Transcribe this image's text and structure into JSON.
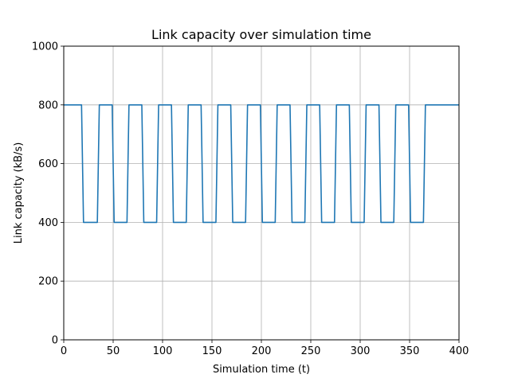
{
  "chart_data": {
    "type": "line",
    "title": "Link capacity over simulation time",
    "xlabel": "Simulation time (t)",
    "ylabel": "Link capacity (kB/s)",
    "xlim": [
      0,
      400
    ],
    "ylim": [
      0,
      1000
    ],
    "xticks": [
      0,
      50,
      100,
      150,
      200,
      250,
      300,
      350,
      400
    ],
    "yticks": [
      0,
      200,
      400,
      600,
      800,
      1000
    ],
    "grid": true,
    "line_color": "#1f77b4",
    "series": [
      {
        "x": [
          0,
          18,
          20,
          34,
          36,
          49,
          51,
          64,
          66,
          79,
          81,
          94,
          96,
          109,
          111,
          124,
          126,
          139,
          141,
          154,
          156,
          169,
          171,
          184,
          186,
          199,
          201,
          214,
          216,
          229,
          231,
          244,
          246,
          259,
          261,
          274,
          276,
          289,
          291,
          304,
          306,
          319,
          321,
          334,
          336,
          349,
          351,
          364,
          366,
          400
        ],
        "y": [
          800,
          800,
          400,
          400,
          800,
          800,
          400,
          400,
          800,
          800,
          400,
          400,
          800,
          800,
          400,
          400,
          800,
          800,
          400,
          400,
          800,
          800,
          400,
          400,
          800,
          800,
          400,
          400,
          800,
          800,
          400,
          400,
          800,
          800,
          400,
          400,
          800,
          800,
          400,
          400,
          800,
          800,
          400,
          400,
          800,
          800,
          400,
          400,
          800,
          800
        ]
      }
    ]
  }
}
